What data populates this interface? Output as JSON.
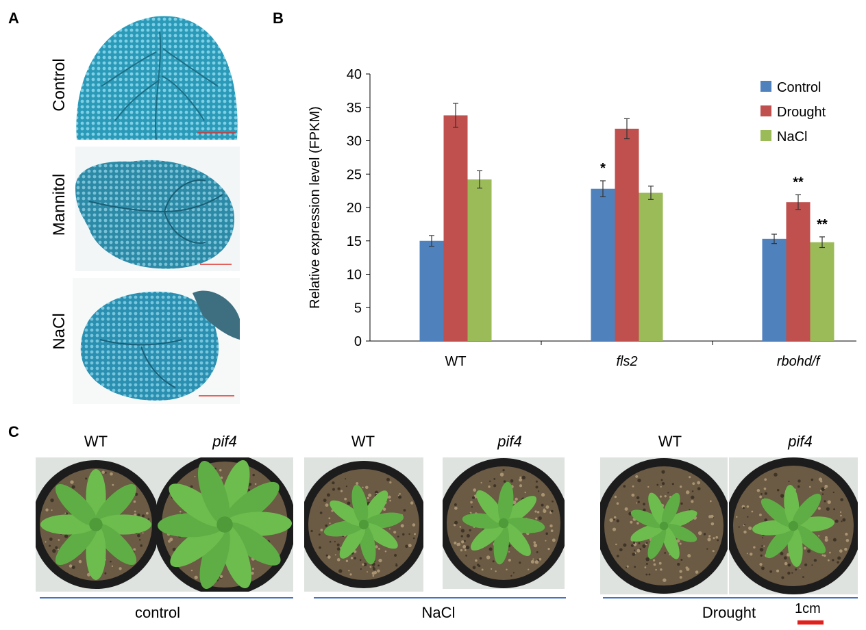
{
  "panels": {
    "a": "A",
    "b": "B",
    "c": "C"
  },
  "panel_a": {
    "rows": [
      {
        "label": "Control"
      },
      {
        "label": "Mannitol"
      },
      {
        "label": "NaCl"
      }
    ]
  },
  "chart_data": {
    "type": "bar",
    "title": "",
    "xlabel": "",
    "ylabel": "Relative expression level (FPKM)",
    "ylim": [
      0,
      40
    ],
    "yticks": [
      "0",
      "5",
      "10",
      "15",
      "20",
      "25",
      "30",
      "35",
      "40"
    ],
    "categories": [
      "WT",
      "fls2",
      "rbohd/f"
    ],
    "category_italic": [
      false,
      true,
      true
    ],
    "series": [
      {
        "name": "Control",
        "color": "#4f81bd",
        "values": [
          15.0,
          22.8,
          15.3
        ],
        "errors": [
          0.8,
          1.2,
          0.7
        ],
        "sig": [
          "",
          "*",
          ""
        ]
      },
      {
        "name": "Drought",
        "color": "#c0504d",
        "values": [
          33.8,
          31.8,
          20.8
        ],
        "errors": [
          1.8,
          1.5,
          1.1
        ],
        "sig": [
          "",
          "",
          "**"
        ]
      },
      {
        "name": "NaCl",
        "color": "#9bbb59",
        "values": [
          24.2,
          22.2,
          14.8
        ],
        "errors": [
          1.3,
          1.0,
          0.8
        ],
        "sig": [
          "",
          "",
          "**"
        ]
      }
    ],
    "legend_position": "top-right"
  },
  "panel_c": {
    "groups": [
      {
        "name": "control",
        "wt": "WT",
        "mutant": "pif4"
      },
      {
        "name": "NaCl",
        "wt": "WT",
        "mutant": "pif4"
      },
      {
        "name": "Drought",
        "wt": "WT",
        "mutant": "pif4"
      }
    ],
    "scale_bar": "1cm"
  }
}
